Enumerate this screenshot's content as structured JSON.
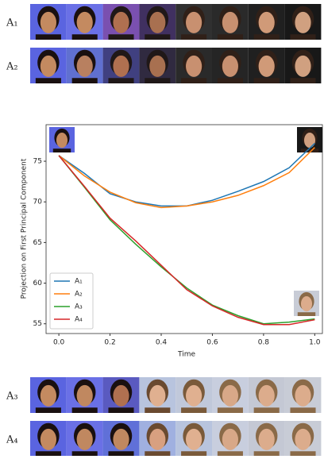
{
  "chart_data": {
    "type": "line",
    "xlabel": "Time",
    "ylabel": "Projection on First Principal Component",
    "x": [
      0,
      0.1,
      0.2,
      0.3,
      0.4,
      0.5,
      0.6,
      0.7,
      0.8,
      0.9,
      1.0
    ],
    "series": [
      {
        "name": "A₁",
        "color": "#1f77b4",
        "values": [
          75.7,
          73.5,
          71.0,
          70.0,
          69.5,
          69.5,
          70.2,
          71.3,
          72.5,
          74.2,
          77.2
        ]
      },
      {
        "name": "A₂",
        "color": "#ff7f0e",
        "values": [
          75.7,
          73.2,
          71.2,
          69.9,
          69.3,
          69.5,
          70.0,
          70.8,
          72.0,
          73.6,
          76.7
        ]
      },
      {
        "name": "A₃",
        "color": "#2ca02c",
        "values": [
          75.7,
          71.8,
          67.8,
          64.8,
          62.0,
          59.4,
          57.3,
          56.0,
          55.0,
          55.2,
          55.6
        ]
      },
      {
        "name": "A₄",
        "color": "#d62728",
        "values": [
          75.7,
          71.9,
          68.0,
          65.2,
          62.2,
          59.2,
          57.2,
          55.8,
          54.9,
          54.9,
          55.5
        ]
      }
    ],
    "xlim": [
      -0.05,
      1.03
    ],
    "ylim": [
      53.8,
      79.5
    ],
    "xticks": [
      {
        "value": 0,
        "label": "0.0"
      },
      0.2,
      0.4,
      0.6,
      0.8,
      {
        "value": 1,
        "label": "1.0"
      }
    ],
    "yticks": [
      55,
      60,
      65,
      70,
      75
    ],
    "legend": "lower left"
  },
  "image_rows": [
    {
      "label": "A₁"
    },
    {
      "label": "A₂"
    },
    {
      "label": "A₃"
    },
    {
      "label": "A₄"
    }
  ]
}
